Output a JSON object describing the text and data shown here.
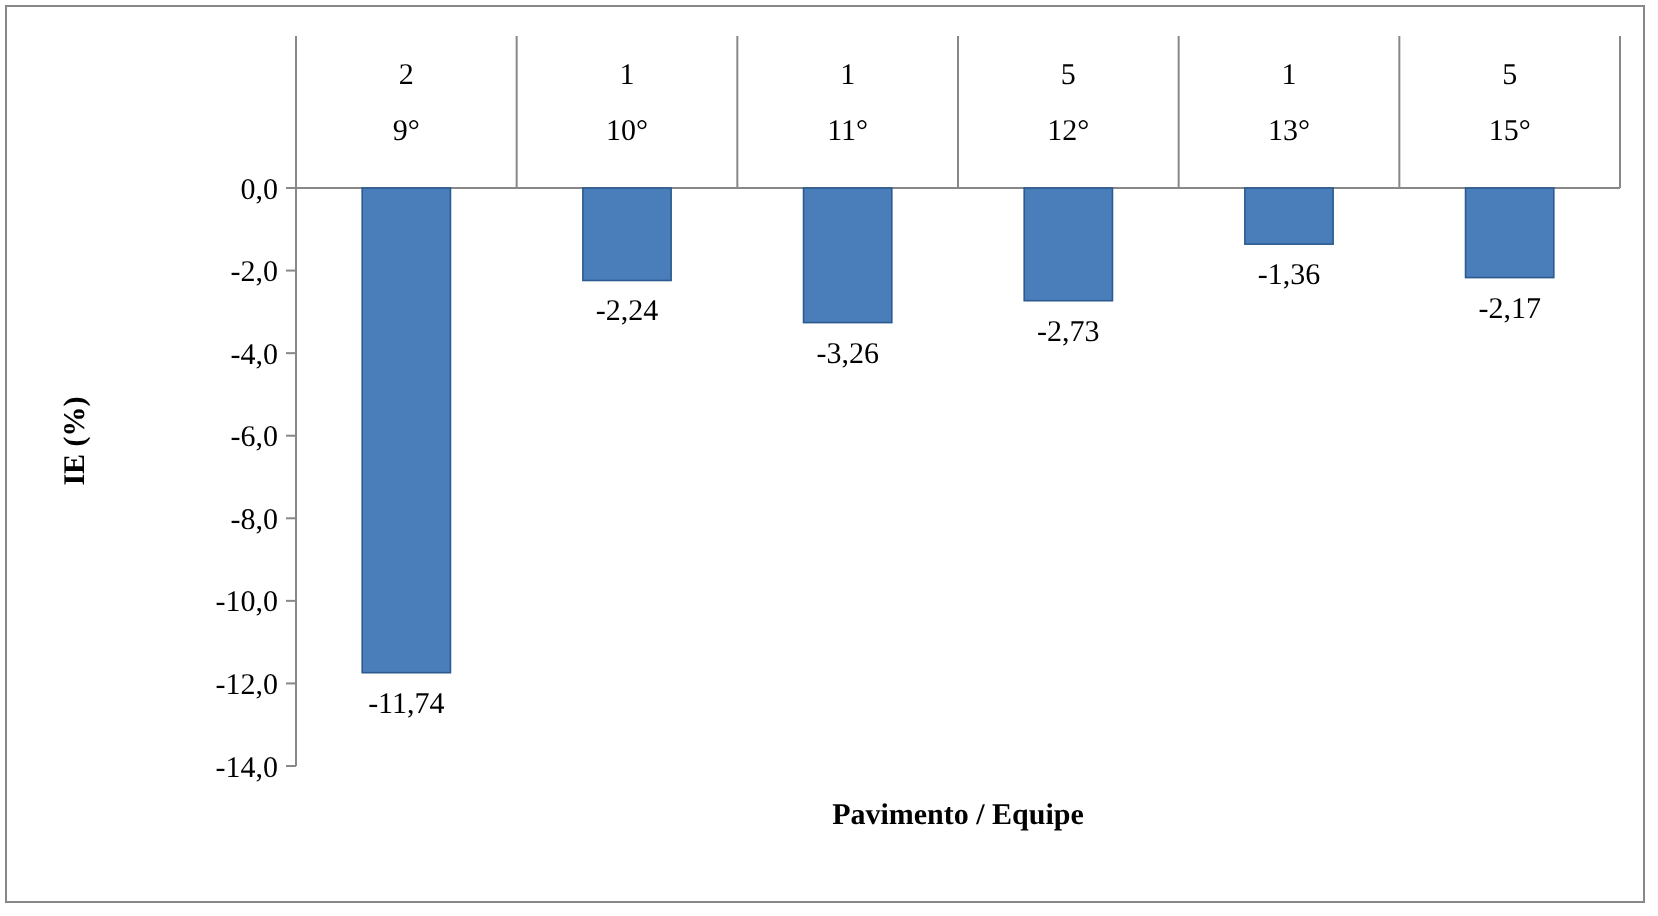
{
  "chart_data": {
    "type": "bar",
    "xlabel": "Pavimento / Equipe",
    "ylabel": "IE (%)",
    "categories": [
      "2\n9°",
      "1\n10°",
      "1\n11°",
      "5\n12°",
      "1\n13°",
      "5\n15°"
    ],
    "values": [
      -11.74,
      -2.24,
      -3.26,
      -2.73,
      -1.36,
      -2.17
    ],
    "value_labels": [
      "-11,74",
      "-2,24",
      "-3,26",
      "-2,73",
      "-1,36",
      "-2,17"
    ],
    "color": "#4a7ebb",
    "ylim": [
      -14,
      0
    ],
    "yticks": [
      {
        "value": 0,
        "label": "0,0"
      },
      {
        "value": -2,
        "label": "-2,0"
      },
      {
        "value": -4,
        "label": "-4,0"
      },
      {
        "value": -6,
        "label": "-6,0"
      },
      {
        "value": -8,
        "label": "-8,0"
      },
      {
        "value": -10,
        "label": "-10,0"
      },
      {
        "value": -12,
        "label": "-12,0"
      },
      {
        "value": -14,
        "label": "-14,0"
      }
    ],
    "grid": false
  }
}
